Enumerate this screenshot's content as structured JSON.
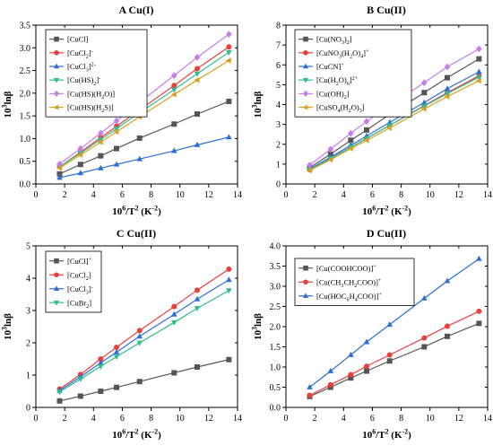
{
  "chart_data": [
    {
      "type": "line",
      "title": "A Cu(I)",
      "xlabel": "10<sup>6</sup>/T<sup>2</sup> (K<sup>-2</sup>)",
      "ylabel": "10<sup>3</sup>lnβ",
      "xlim": [
        0,
        14
      ],
      "ylim": [
        0,
        3.5
      ],
      "xticks": [
        0,
        2,
        4,
        6,
        8,
        10,
        12,
        14
      ],
      "yticks": [
        0,
        0.5,
        1,
        1.5,
        2,
        2.5,
        3,
        3.5
      ],
      "tick_labels_x": [
        "0",
        "2",
        "4",
        "6",
        "8",
        "10",
        "12",
        "14"
      ],
      "tick_labels_y": [
        "0.0",
        "0.5",
        "1.0",
        "1.5",
        "2.0",
        "2.5",
        "3.0",
        "3.5"
      ],
      "legend_position": "top-left",
      "x": [
        1.65,
        3.1,
        4.5,
        5.6,
        7.2,
        9.6,
        11.2,
        13.4
      ],
      "series": [
        {
          "name": "[CuCl]",
          "color": "#555555",
          "marker": "square",
          "values": [
            0.22,
            0.43,
            0.62,
            0.78,
            1.01,
            1.32,
            1.54,
            1.82
          ]
        },
        {
          "name": "[CuCl<sub>2</sub>]<sup>-</sup>",
          "color": "#e8413c",
          "marker": "circle",
          "values": [
            0.38,
            0.7,
            1.02,
            1.27,
            1.63,
            2.17,
            2.54,
            3.02
          ]
        },
        {
          "name": "[CuCl<sub>3</sub>]<sup>2-</sup>",
          "color": "#2b6fd6",
          "marker": "triangle-up",
          "values": [
            0.14,
            0.24,
            0.35,
            0.43,
            0.55,
            0.73,
            0.86,
            1.03
          ]
        },
        {
          "name": "[Cu(HS)<sub>2</sub>]<sup>-</sup>",
          "color": "#2ebd8e",
          "marker": "triangle-down",
          "values": [
            0.38,
            0.68,
            0.98,
            1.22,
            1.57,
            2.08,
            2.43,
            2.9
          ]
        },
        {
          "name": "[Cu(HS)(H<sub>2</sub>O)]",
          "color": "#c77de8",
          "marker": "diamond",
          "values": [
            0.44,
            0.78,
            1.12,
            1.39,
            1.8,
            2.39,
            2.79,
            3.3
          ]
        },
        {
          "name": "[Cu(HS)(H<sub>2</sub>S)]",
          "color": "#d6a21e",
          "marker": "triangle-left",
          "values": [
            0.35,
            0.64,
            0.92,
            1.15,
            1.48,
            1.97,
            2.29,
            2.72
          ]
        }
      ]
    },
    {
      "type": "line",
      "title": "B Cu(II)",
      "xlabel": "10<sup>6</sup>/T<sup>2</sup> (K<sup>-2</sup>)",
      "ylabel": "10<sup>3</sup>lnβ",
      "xlim": [
        0,
        14
      ],
      "ylim": [
        0,
        8
      ],
      "xticks": [
        0,
        2,
        4,
        6,
        8,
        10,
        12,
        14
      ],
      "yticks": [
        0,
        1,
        2,
        3,
        4,
        5,
        6,
        7,
        8
      ],
      "tick_labels_x": [
        "0",
        "2",
        "4",
        "6",
        "8",
        "10",
        "12",
        "14"
      ],
      "tick_labels_y": [
        "0",
        "1",
        "2",
        "3",
        "4",
        "5",
        "6",
        "7",
        "8"
      ],
      "legend_position": "top-left",
      "x": [
        1.65,
        3.1,
        4.5,
        5.6,
        7.2,
        9.6,
        11.2,
        13.4
      ],
      "series": [
        {
          "name": "[Cu(NO<sub>3</sub>)<sub>2</sub>]",
          "color": "#555555",
          "marker": "square",
          "values": [
            0.82,
            1.5,
            2.2,
            2.72,
            3.5,
            4.6,
            5.35,
            6.3
          ]
        },
        {
          "name": "[CuNO<sub>3</sub>(H<sub>2</sub>O)<sub>4</sub>]<sup>+</sup>",
          "color": "#e8413c",
          "marker": "circle",
          "values": [
            0.72,
            1.3,
            1.85,
            2.3,
            2.95,
            3.95,
            4.6,
            5.45
          ]
        },
        {
          "name": "[CuCN]<sup>+</sup>",
          "color": "#2b6fd6",
          "marker": "triangle-up",
          "values": [
            0.75,
            1.35,
            1.95,
            2.42,
            3.1,
            4.1,
            4.8,
            5.65
          ]
        },
        {
          "name": "[Cu(H<sub>2</sub>O)<sub>6</sub>]<sup>2+</sup>",
          "color": "#2ebd8e",
          "marker": "triangle-down",
          "values": [
            0.72,
            1.28,
            1.85,
            2.3,
            2.95,
            3.92,
            4.55,
            5.38
          ]
        },
        {
          "name": "[Cu(OH)<sub>2</sub>]",
          "color": "#c77de8",
          "marker": "diamond",
          "values": [
            0.95,
            1.75,
            2.55,
            3.15,
            3.95,
            5.1,
            5.9,
            6.8
          ]
        },
        {
          "name": "[CuSO<sub>4</sub>(H<sub>2</sub>O)<sub>3</sub>]",
          "color": "#d6a21e",
          "marker": "triangle-left",
          "values": [
            0.68,
            1.22,
            1.78,
            2.2,
            2.82,
            3.78,
            4.4,
            5.2
          ]
        }
      ]
    },
    {
      "type": "line",
      "title": "C Cu(II)",
      "xlabel": "10<sup>6</sup>/T<sup>2</sup> (K<sup>-2</sup>)",
      "ylabel": "10<sup>3</sup>lnβ",
      "xlim": [
        0,
        14
      ],
      "ylim": [
        0,
        5
      ],
      "xticks": [
        0,
        2,
        4,
        6,
        8,
        10,
        12,
        14
      ],
      "yticks": [
        0,
        1,
        2,
        3,
        4,
        5
      ],
      "tick_labels_x": [
        "0",
        "2",
        "4",
        "6",
        "8",
        "10",
        "12",
        "14"
      ],
      "tick_labels_y": [
        "0",
        "1",
        "2",
        "3",
        "4",
        "5"
      ],
      "legend_position": "top-left",
      "x": [
        1.65,
        3.1,
        4.5,
        5.6,
        7.2,
        9.6,
        11.2,
        13.4
      ],
      "series": [
        {
          "name": "[CuCl]<sup>+</sup>",
          "color": "#555555",
          "marker": "square",
          "values": [
            0.2,
            0.35,
            0.5,
            0.62,
            0.8,
            1.07,
            1.25,
            1.48
          ]
        },
        {
          "name": "[CuCl<sub>2</sub>]",
          "color": "#e8413c",
          "marker": "circle",
          "values": [
            0.57,
            1.02,
            1.5,
            1.86,
            2.38,
            3.12,
            3.63,
            4.28
          ]
        },
        {
          "name": "[CuCl<sub>3</sub>]<sup>-</sup>",
          "color": "#2b6fd6",
          "marker": "triangle-up",
          "values": [
            0.52,
            0.95,
            1.38,
            1.71,
            2.2,
            2.88,
            3.35,
            3.95
          ]
        },
        {
          "name": "[CuBr<sub>2</sub>]",
          "color": "#2ebd8e",
          "marker": "triangle-down",
          "values": [
            0.48,
            0.88,
            1.27,
            1.57,
            2.0,
            2.63,
            3.07,
            3.62
          ]
        }
      ]
    },
    {
      "type": "line",
      "title": "D Cu(II)",
      "xlabel": "10<sup>6</sup>/T<sup>2</sup> (K<sup>-2</sup>)",
      "ylabel": "10<sup>3</sup>lnβ",
      "xlim": [
        0,
        14
      ],
      "ylim": [
        0,
        4
      ],
      "xticks": [
        0,
        2,
        4,
        6,
        8,
        10,
        12,
        14
      ],
      "yticks": [
        0,
        0.5,
        1,
        1.5,
        2,
        2.5,
        3,
        3.5,
        4
      ],
      "tick_labels_x": [
        "0",
        "2",
        "4",
        "6",
        "8",
        "10",
        "12",
        "14"
      ],
      "tick_labels_y": [
        "0.0",
        "0.5",
        "1.0",
        "1.5",
        "2.0",
        "2.5",
        "3.0",
        "3.5",
        "4.0"
      ],
      "legend_position": "top-left",
      "x": [
        1.65,
        3.1,
        4.5,
        5.6,
        7.2,
        9.6,
        11.2,
        13.4
      ],
      "series": [
        {
          "name": "[Cu(COOHCOO)]<sup>+</sup>",
          "color": "#555555",
          "marker": "square",
          "values": [
            0.27,
            0.5,
            0.73,
            0.9,
            1.15,
            1.5,
            1.76,
            2.08
          ]
        },
        {
          "name": "[Cu(CH<sub>3</sub>CH<sub>2</sub>COO)]<sup>+</sup>",
          "color": "#e8413c",
          "marker": "circle",
          "values": [
            0.3,
            0.56,
            0.81,
            1.02,
            1.3,
            1.72,
            2.01,
            2.38
          ]
        },
        {
          "name": "[Cu(HOC<sub>6</sub>H<sub>4</sub>COO)]<sup>+</sup>",
          "color": "#2b6fd6",
          "marker": "triangle-up",
          "values": [
            0.5,
            0.9,
            1.3,
            1.62,
            2.05,
            2.7,
            3.13,
            3.68
          ]
        }
      ]
    }
  ]
}
